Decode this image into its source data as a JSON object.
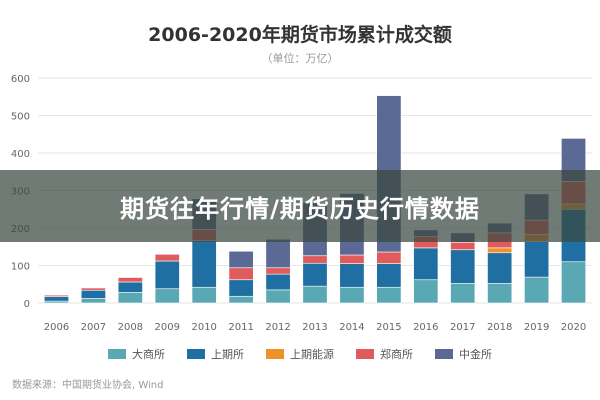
{
  "banner": {
    "text": "期货往年行情/期货历史行情数据"
  },
  "source": "数据来源：中国期货业协会, Wind",
  "chart_data": {
    "type": "bar",
    "stacked": true,
    "title": "2006-2020年期货市场累计成交额",
    "subtitle": "（单位：万亿）",
    "categories": [
      "2006",
      "2007",
      "2008",
      "2009",
      "2010",
      "2011",
      "2012",
      "2013",
      "2014",
      "2015",
      "2016",
      "2017",
      "2018",
      "2019",
      "2020"
    ],
    "ylim": [
      0,
      600
    ],
    "yticks": [
      0,
      100,
      200,
      300,
      400,
      500,
      600
    ],
    "grid": true,
    "legend_position": "bottom",
    "series": [
      {
        "name": "大商所",
        "color": "#5BA8B5",
        "values": [
          5,
          12,
          28,
          38,
          42,
          18,
          35,
          45,
          42,
          42,
          62,
          52,
          52,
          69,
          110
        ]
      },
      {
        "name": "上期所",
        "color": "#1F6FA3",
        "values": [
          12,
          22,
          28,
          74,
          124,
          44,
          42,
          61,
          63,
          63,
          85,
          90,
          82,
          95,
          140
        ]
      },
      {
        "name": "上期能源",
        "color": "#F0922B",
        "values": [
          0,
          0,
          0,
          0,
          0,
          0,
          0,
          0,
          0,
          0,
          0,
          0,
          13,
          19,
          14
        ]
      },
      {
        "name": "郑商所",
        "color": "#E05C5C",
        "values": [
          4,
          6,
          12,
          18,
          30,
          32,
          17,
          20,
          23,
          31,
          30,
          20,
          40,
          38,
          60
        ]
      },
      {
        "name": "中金所",
        "color": "#5A6A94",
        "values": [
          0,
          0,
          0,
          0,
          82,
          44,
          76,
          141,
          164,
          417,
          18,
          25,
          26,
          70,
          115
        ]
      }
    ]
  }
}
